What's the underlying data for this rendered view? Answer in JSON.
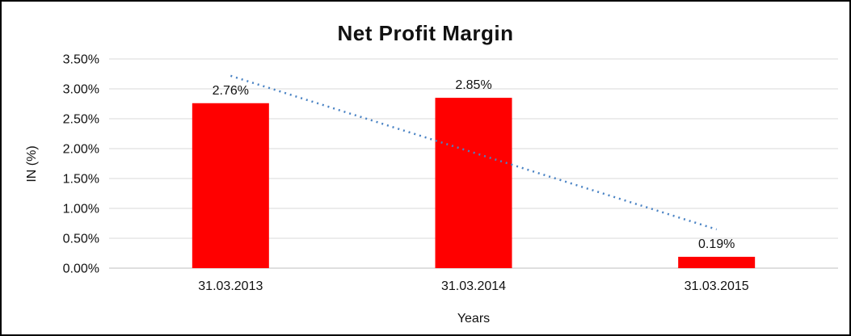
{
  "chart_data": {
    "type": "bar",
    "title": "Net Profit Margin",
    "xlabel": "Years",
    "ylabel": "IN (%)",
    "categories": [
      "31.03.2013",
      "31.03.2014",
      "31.03.2015"
    ],
    "values": [
      2.76,
      2.85,
      0.19
    ],
    "data_labels": [
      "2.76%",
      "2.85%",
      "0.19%"
    ],
    "ylim": [
      0,
      3.5
    ],
    "ytick_step": 0.5,
    "ytick_labels": [
      "0.00%",
      "0.50%",
      "1.00%",
      "1.50%",
      "2.00%",
      "2.50%",
      "3.00%",
      "3.50%"
    ],
    "bar_color": "#ff0000",
    "grid": true,
    "legend": "none",
    "gridline_color": "#d9d9d9",
    "axis_line_color": "#bfbfbf",
    "text_color": "#111111",
    "trendline": {
      "type": "linear",
      "style": "dotted",
      "color": "#4a83c4"
    }
  }
}
